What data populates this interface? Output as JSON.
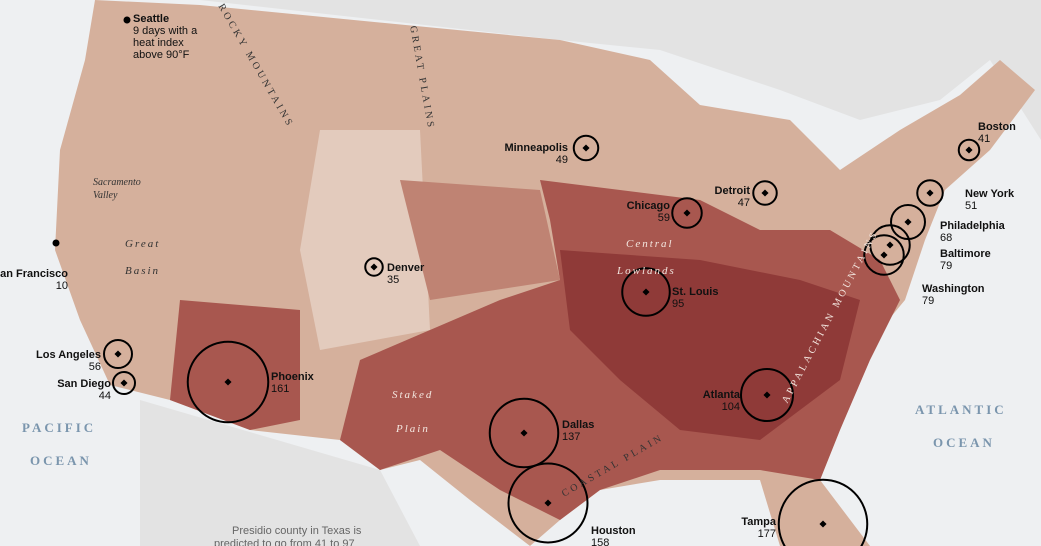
{
  "map": {
    "regions": [
      "ROCKY MOUNTAINS",
      "GREAT PLAINS",
      "Central",
      "Lowlands",
      "APPALACHIAN MOUNTAINS",
      "COASTAL PLAIN",
      "Great",
      "Basin",
      "Sacramento",
      "Valley",
      "Staked",
      "Plain"
    ],
    "oceans": [
      "PACIFIC",
      "OCEAN",
      "ATLANTIC",
      "OCEAN"
    ],
    "annotation": [
      "Presidio county in Texas is",
      "predicted to go from 41 to 97"
    ],
    "cities": [
      {
        "name": "Seattle",
        "value": 9,
        "value_label": "9 days with a heat index above 90°F"
      },
      {
        "name": "San Francisco",
        "value": 10
      },
      {
        "name": "Los Angeles",
        "value": 56
      },
      {
        "name": "San Diego",
        "value": 44
      },
      {
        "name": "Phoenix",
        "value": 161
      },
      {
        "name": "Denver",
        "value": 35
      },
      {
        "name": "Minneapolis",
        "value": 49
      },
      {
        "name": "Chicago",
        "value": 59
      },
      {
        "name": "Detroit",
        "value": 47
      },
      {
        "name": "St. Louis",
        "value": 95
      },
      {
        "name": "Dallas",
        "value": 137
      },
      {
        "name": "Houston",
        "value": 158
      },
      {
        "name": "Atlanta",
        "value": 104
      },
      {
        "name": "Tampa",
        "value": 177
      },
      {
        "name": "Boston",
        "value": 41
      },
      {
        "name": "New York",
        "value": 51
      },
      {
        "name": "Philadelphia",
        "value": 68
      },
      {
        "name": "Baltimore",
        "value": 79
      },
      {
        "name": "Washington",
        "value": 79
      }
    ]
  }
}
